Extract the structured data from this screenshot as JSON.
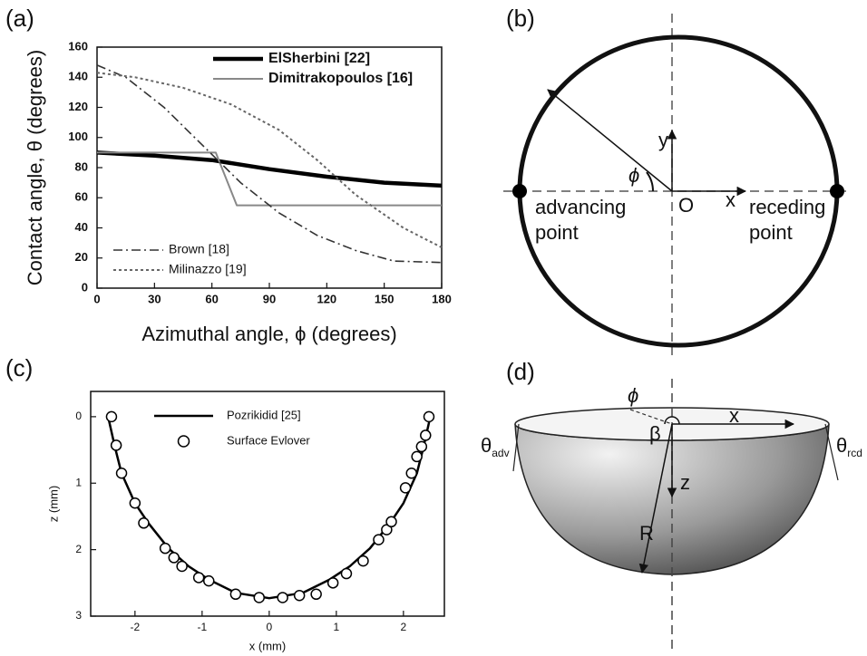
{
  "chart_data": [
    {
      "type": "line",
      "panel_label": "(a)",
      "xlabel": "Azimuthal angle, ϕ (degrees)",
      "ylabel": "Contact angle, θ (degrees)",
      "xlim": [
        0,
        180
      ],
      "xticks": [
        0,
        30,
        60,
        90,
        120,
        150,
        180
      ],
      "ylim": [
        0,
        160
      ],
      "yticks": [
        0,
        20,
        40,
        60,
        80,
        100,
        120,
        140,
        160
      ],
      "series": [
        {
          "name": "ElSherbini [22]",
          "color": "#000000",
          "width": 4.5,
          "dash": "solid",
          "legend_loc": "upper center",
          "x": [
            0,
            30,
            60,
            90,
            120,
            150,
            180
          ],
          "values": [
            90,
            88,
            85,
            79,
            74,
            70,
            68
          ]
        },
        {
          "name": "Dimitrakopoulos [16]",
          "color": "#888888",
          "width": 2,
          "dash": "solid",
          "legend_loc": "upper center",
          "x": [
            0,
            62,
            73,
            180
          ],
          "values": [
            90,
            90,
            55,
            55
          ]
        },
        {
          "name": "Brown [18]",
          "color": "#333333",
          "width": 1.6,
          "dash": "dashdot",
          "legend_loc": "lower left",
          "x": [
            0,
            15,
            35,
            55,
            75,
            95,
            115,
            135,
            155,
            180
          ],
          "values": [
            148,
            140,
            120,
            95,
            70,
            50,
            35,
            25,
            18,
            17
          ]
        },
        {
          "name": "Milinazzo [19]",
          "color": "#666666",
          "width": 2,
          "dash": "dotted",
          "legend_loc": "lower left",
          "x": [
            0,
            20,
            45,
            70,
            95,
            115,
            135,
            160,
            180
          ],
          "values": [
            143,
            140,
            133,
            122,
            105,
            85,
            62,
            40,
            27
          ]
        }
      ]
    },
    {
      "type": "line",
      "panel_label": "(c)",
      "xlabel": "x (mm)",
      "ylabel": "z (mm)",
      "xlim": [
        -2.66,
        2.61
      ],
      "xticks": [
        -2,
        -1,
        0,
        1,
        2
      ],
      "ylim": [
        3,
        -0.38
      ],
      "yticks": [
        0,
        1,
        2,
        3
      ],
      "series": [
        {
          "name": "Pozrikidid [25]",
          "color": "#000000",
          "width": 2.5,
          "marker": "none",
          "x": [
            -2.4,
            -2.3,
            -2.2,
            -2.0,
            -1.8,
            -1.5,
            -1.2,
            -0.9,
            -0.5,
            0,
            0.5,
            0.9,
            1.2,
            1.5,
            1.8,
            2.0,
            2.2,
            2.3,
            2.4
          ],
          "values": [
            0,
            0.45,
            0.85,
            1.3,
            1.6,
            1.98,
            2.25,
            2.45,
            2.65,
            2.73,
            2.65,
            2.45,
            2.25,
            1.98,
            1.6,
            1.3,
            0.85,
            0.45,
            0
          ]
        },
        {
          "name": "Surface Evlover",
          "color": "#000000",
          "width": 0,
          "marker": "circle",
          "x": [
            -2.35,
            -2.28,
            -2.2,
            -2.0,
            -1.87,
            -1.55,
            -1.42,
            -1.3,
            -1.05,
            -0.9,
            -0.5,
            -0.15,
            0.2,
            0.45,
            0.7,
            0.95,
            1.15,
            1.4,
            1.63,
            1.75,
            1.82,
            2.03,
            2.12,
            2.2,
            2.27,
            2.33,
            2.38
          ],
          "values": [
            0,
            0.43,
            0.85,
            1.3,
            1.6,
            1.98,
            2.12,
            2.25,
            2.42,
            2.47,
            2.67,
            2.72,
            2.72,
            2.69,
            2.67,
            2.5,
            2.36,
            2.17,
            1.85,
            1.7,
            1.58,
            1.07,
            0.85,
            0.6,
            0.45,
            0.28,
            0
          ]
        }
      ]
    }
  ],
  "diagrams": {
    "b": {
      "panel_label": "(b)",
      "y": "y",
      "x": "x",
      "origin": "O",
      "phi": "ϕ",
      "advancing": [
        "advancing",
        "point"
      ],
      "receding": [
        "receding",
        "point"
      ]
    },
    "d": {
      "panel_label": "(d)",
      "phi": "ϕ",
      "x": "x",
      "beta": "β",
      "z": "z",
      "R": "R",
      "theta_adv": {
        "symbol": "θ",
        "sub": "adv"
      },
      "theta_rcd": {
        "symbol": "θ",
        "sub": "rcd"
      }
    }
  }
}
